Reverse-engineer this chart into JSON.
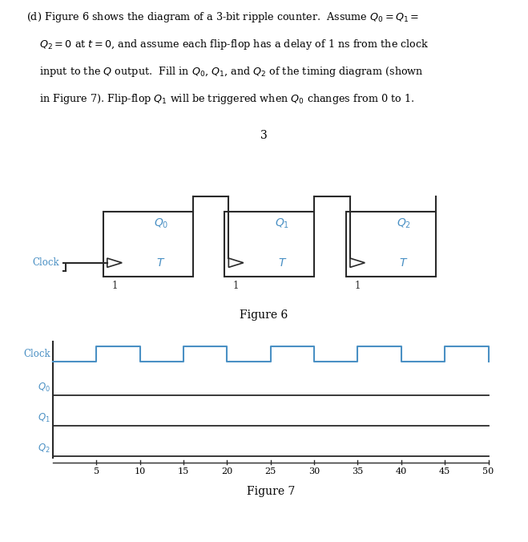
{
  "page_number": "3",
  "fig6_label": "Figure 6",
  "fig7_label": "Figure 7",
  "blue_color": "#4A90C4",
  "dark_color": "#2a2a2a",
  "gray_bar_color": "#4a4a4a",
  "bg_white": "#ffffff",
  "xaxis_ticks": [
    5,
    10,
    15,
    20,
    25,
    30,
    35,
    40,
    45,
    50
  ],
  "text_lines": [
    "(d) Figure 6 shows the diagram of a 3-bit ripple counter.  Assume $Q_0 = Q_1 =$",
    "    $Q_2 = 0$ at $t = 0$, and assume each flip-flop has a delay of 1 ns from the clock",
    "    input to the $Q$ output.  Fill in $Q_0$, $Q_1$, and $Q_2$ of the timing diagram (shown",
    "    in Figure 7). Flip-flop $Q_1$ will be triggered when $Q_0$ changes from 0 to 1."
  ]
}
